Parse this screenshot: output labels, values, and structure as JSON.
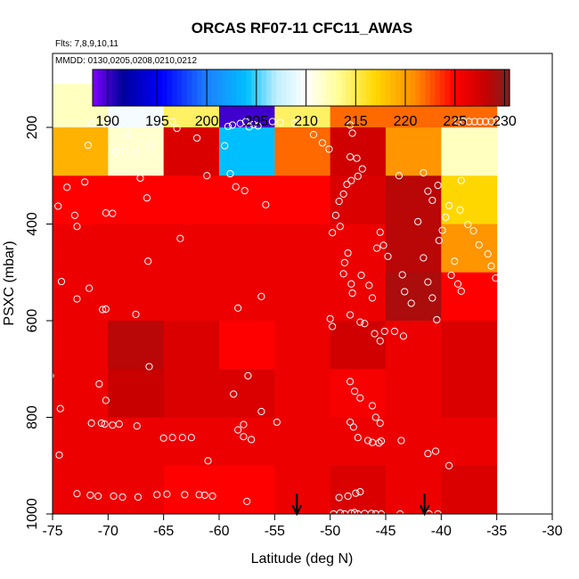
{
  "chart_data": {
    "type": "heatmap",
    "title": "ORCAS RF07-11 CFC11_AWAS",
    "subtitle_flights": "Flts: 7,8,9,10,11",
    "subtitle_dates": "MMDD: 0130,0205,0208,0210,0212",
    "xlabel": "Latitude (deg N)",
    "ylabel": "PSXC (mbar)",
    "xlim": [
      -75,
      -30
    ],
    "ylim": [
      1000,
      100
    ],
    "x_ticks": [
      -75,
      -70,
      -65,
      -60,
      -55,
      -50,
      -45,
      -40,
      -35,
      -30
    ],
    "x_tick_labels": [
      "-75",
      "-70",
      "-65",
      "-60",
      "-55",
      "-50",
      "-45",
      "-40",
      "-35",
      "-30"
    ],
    "y_ticks": [
      200,
      400,
      600,
      800,
      1000
    ],
    "y_tick_labels": [
      "200",
      "400",
      "600",
      "800",
      "1000"
    ],
    "colorbar": {
      "min": 188.5,
      "max": 230.5,
      "ticks": [
        190,
        195,
        200,
        205,
        210,
        215,
        220,
        225,
        230
      ],
      "tick_labels": [
        "190",
        "195",
        "200",
        "205",
        "210",
        "215",
        "220",
        "225",
        "230"
      ],
      "color_stops": [
        [
          188.5,
          "#7f00ff"
        ],
        [
          191.5,
          "#00009a"
        ],
        [
          195.5,
          "#0000ff"
        ],
        [
          200,
          "#1e7fff"
        ],
        [
          204,
          "#00bfff"
        ],
        [
          207,
          "#bfefff"
        ],
        [
          210,
          "#ffffff"
        ],
        [
          213,
          "#ffffa0"
        ],
        [
          217,
          "#ffd700"
        ],
        [
          221,
          "#ff8c00"
        ],
        [
          225,
          "#ff0000"
        ],
        [
          228,
          "#c80000"
        ],
        [
          230.5,
          "#7f1f1f"
        ]
      ]
    },
    "x_bins": [
      -75,
      -70,
      -65,
      -60,
      -55,
      -50,
      -45,
      -40,
      -35
    ],
    "y_bins": [
      100,
      200,
      300,
      400,
      500,
      600,
      700,
      800,
      900,
      1000
    ],
    "cells": [
      [
        212,
        209.5,
        214.5,
        190,
        214.5,
        222,
        222,
        222
      ],
      [
        219,
        211.5,
        227,
        204,
        222,
        227.5,
        220.5,
        212
      ],
      [
        225,
        225,
        225,
        225,
        225,
        227,
        228.5,
        217
      ],
      [
        226,
        226,
        226,
        226,
        226,
        226,
        228.5,
        220.5
      ],
      [
        226,
        226,
        226,
        226,
        226,
        226,
        229,
        225
      ],
      [
        226,
        228.5,
        227,
        225,
        226,
        227.5,
        226,
        227
      ],
      [
        226,
        228,
        227,
        227,
        226,
        225.5,
        226,
        227
      ],
      [
        226,
        226,
        226,
        226,
        226,
        226,
        226,
        226
      ],
      [
        226,
        226,
        225,
        225,
        226,
        227,
        226,
        227
      ]
    ],
    "observations": [
      [
        -71.5,
        192
      ],
      [
        -70.3,
        190
      ],
      [
        -68.2,
        213
      ],
      [
        -67.5,
        252
      ],
      [
        -66.2,
        239
      ],
      [
        -64.2,
        188
      ],
      [
        -63.8,
        202
      ],
      [
        -62,
        222
      ],
      [
        -59.2,
        198
      ],
      [
        -58.8,
        195
      ],
      [
        -59.5,
        238
      ],
      [
        -58.1,
        192
      ],
      [
        -57.6,
        188
      ],
      [
        -57.3,
        199
      ],
      [
        -56.9,
        194
      ],
      [
        -56.5,
        197
      ],
      [
        -55.2,
        188
      ],
      [
        -54.5,
        190
      ],
      [
        -53.2,
        192
      ],
      [
        -51.5,
        215
      ],
      [
        -50.7,
        232
      ],
      [
        -50.1,
        245
      ],
      [
        -48.2,
        195
      ],
      [
        -48,
        212
      ],
      [
        -71.8,
        237
      ],
      [
        -69.3,
        250
      ],
      [
        -68.5,
        248
      ],
      [
        -61.1,
        300
      ],
      [
        -59,
        296
      ],
      [
        -58.5,
        323
      ],
      [
        -57.7,
        331
      ],
      [
        -55.8,
        360
      ],
      [
        -48.2,
        261
      ],
      [
        -47.6,
        264
      ],
      [
        -47.1,
        286
      ],
      [
        -47.5,
        301
      ],
      [
        -48.1,
        310
      ],
      [
        -48.5,
        318
      ],
      [
        -48.8,
        338
      ],
      [
        -49.2,
        353
      ],
      [
        -73.7,
        324
      ],
      [
        -72.1,
        313
      ],
      [
        -67.1,
        305
      ],
      [
        -66.5,
        346
      ],
      [
        -70.2,
        377
      ],
      [
        -69.6,
        378
      ],
      [
        -49.5,
        382
      ],
      [
        -49.1,
        405
      ],
      [
        -49.8,
        418
      ],
      [
        -74.5,
        363
      ],
      [
        -73,
        382
      ],
      [
        -72.8,
        405
      ],
      [
        -63.5,
        430
      ],
      [
        -66.4,
        477
      ],
      [
        -75.5,
        549
      ],
      [
        -74.2,
        519
      ],
      [
        -72.8,
        555
      ],
      [
        -71.7,
        533
      ],
      [
        -70.5,
        577
      ],
      [
        -70.2,
        576
      ],
      [
        -67.5,
        587
      ],
      [
        -58.3,
        574
      ],
      [
        -56.2,
        550
      ],
      [
        -48.2,
        588
      ],
      [
        -47.3,
        603
      ],
      [
        -46.9,
        606
      ],
      [
        -46,
        627
      ],
      [
        -50,
        596
      ],
      [
        -49.8,
        612
      ],
      [
        -48.7,
        480
      ],
      [
        -48.4,
        460
      ],
      [
        -48.8,
        503
      ],
      [
        -48.1,
        524
      ],
      [
        -48,
        543
      ],
      [
        -47.2,
        506
      ],
      [
        -46.5,
        527
      ],
      [
        -46.2,
        553
      ],
      [
        -45.8,
        450
      ],
      [
        -45.5,
        417
      ],
      [
        -45.2,
        444
      ],
      [
        -44.8,
        467
      ],
      [
        -43.5,
        505
      ],
      [
        -43.3,
        540
      ],
      [
        -42.7,
        564
      ],
      [
        -42.1,
        395
      ],
      [
        -41.6,
        470
      ],
      [
        -41.2,
        520
      ],
      [
        -40.8,
        553
      ],
      [
        -40.4,
        598
      ],
      [
        -40.2,
        434
      ],
      [
        -39.9,
        413
      ],
      [
        -39.6,
        386
      ],
      [
        -39.3,
        362
      ],
      [
        -39.1,
        506
      ],
      [
        -38.8,
        477
      ],
      [
        -38.5,
        524
      ],
      [
        -38.2,
        539
      ],
      [
        -43.8,
        300
      ],
      [
        -41.6,
        294
      ],
      [
        -41.2,
        332
      ],
      [
        -40.8,
        351
      ],
      [
        -40.3,
        320
      ],
      [
        -38.3,
        371
      ],
      [
        -37.6,
        401
      ],
      [
        -37.1,
        414
      ],
      [
        -36.6,
        443
      ],
      [
        -35.8,
        462
      ],
      [
        -35.5,
        487
      ],
      [
        -35.1,
        512
      ],
      [
        -34.6,
        536
      ],
      [
        -34.2,
        560
      ],
      [
        -38.5,
        188
      ],
      [
        -38,
        188
      ],
      [
        -37.5,
        188
      ],
      [
        -37,
        188
      ],
      [
        -36.5,
        188
      ],
      [
        -36,
        188
      ],
      [
        -35.5,
        188
      ],
      [
        -35,
        188
      ],
      [
        -34.5,
        188
      ],
      [
        -38.2,
        310
      ],
      [
        -44.2,
        622
      ],
      [
        -43.4,
        632
      ],
      [
        -45.1,
        622
      ],
      [
        -45.5,
        642
      ],
      [
        -75.2,
        714
      ],
      [
        -70.8,
        731
      ],
      [
        -70.2,
        765
      ],
      [
        -74.3,
        782
      ],
      [
        -71.5,
        812
      ],
      [
        -70.6,
        812
      ],
      [
        -70.3,
        814
      ],
      [
        -69.6,
        816
      ],
      [
        -69,
        814
      ],
      [
        -67.4,
        818
      ],
      [
        -66.3,
        695
      ],
      [
        -63.3,
        842
      ],
      [
        -62.5,
        842
      ],
      [
        -61,
        890
      ],
      [
        -58.7,
        752
      ],
      [
        -57.4,
        714
      ],
      [
        -58.3,
        826
      ],
      [
        -57.8,
        815
      ],
      [
        -57.1,
        846
      ],
      [
        -57.8,
        840
      ],
      [
        -56.2,
        788
      ],
      [
        -54.8,
        810
      ],
      [
        -48.2,
        726
      ],
      [
        -47.8,
        746
      ],
      [
        -47.3,
        760
      ],
      [
        -46.2,
        776
      ],
      [
        -45.9,
        800
      ],
      [
        -45.5,
        812
      ],
      [
        -48.2,
        810
      ],
      [
        -47.9,
        820
      ],
      [
        -47.5,
        842
      ],
      [
        -46.6,
        848
      ],
      [
        -46.2,
        852
      ],
      [
        -45.6,
        853
      ],
      [
        -45.4,
        849
      ],
      [
        -43.6,
        848
      ],
      [
        -41.2,
        875
      ],
      [
        -40.5,
        870
      ],
      [
        -39.3,
        900
      ],
      [
        -74.4,
        878
      ],
      [
        -65,
        843
      ],
      [
        -64.2,
        842
      ],
      [
        -75.5,
        955
      ],
      [
        -72.8,
        958
      ],
      [
        -71.6,
        961
      ],
      [
        -70.9,
        963
      ],
      [
        -69.5,
        963
      ],
      [
        -68.7,
        965
      ],
      [
        -67.3,
        965
      ],
      [
        -65.6,
        960
      ],
      [
        -64.7,
        959
      ],
      [
        -63.1,
        960
      ],
      [
        -61.8,
        960
      ],
      [
        -61.3,
        961
      ],
      [
        -60.6,
        963
      ],
      [
        -57.5,
        974
      ],
      [
        -49.7,
        1000
      ],
      [
        -49.1,
        998
      ],
      [
        -48.7,
        1000
      ],
      [
        -48.1,
        998
      ],
      [
        -47.8,
        997
      ],
      [
        -47.5,
        1000
      ],
      [
        -46.9,
        999
      ],
      [
        -46.3,
        999
      ],
      [
        -45.9,
        1000
      ],
      [
        -45.4,
        1000
      ],
      [
        -43.7,
        1000
      ],
      [
        -41.1,
        1000
      ],
      [
        -40.3,
        1000
      ],
      [
        -49.2,
        966
      ],
      [
        -48.4,
        963
      ],
      [
        -47.7,
        957
      ],
      [
        -47.3,
        954
      ]
    ],
    "arrows_latitude": [
      -53,
      -41.5
    ],
    "arrow_label_none": ""
  }
}
